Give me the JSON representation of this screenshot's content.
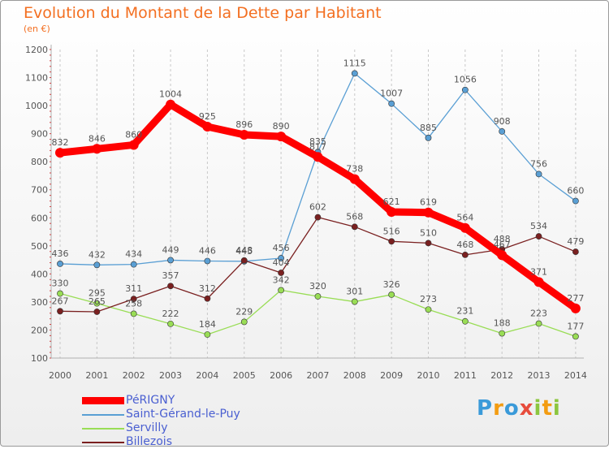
{
  "title": "Evolution du Montant de la Dette par Habitant",
  "subtitle": "(en €)",
  "logo": {
    "text": "Proxiti",
    "icon": "proxiti-logo"
  },
  "chart_data": {
    "type": "line",
    "title": "Evolution du Montant de la Dette par Habitant",
    "subtitle": "(en €)",
    "xlabel": "",
    "ylabel": "",
    "x": [
      "2000",
      "2001",
      "2002",
      "2003",
      "2004",
      "2005",
      "2006",
      "2007",
      "2008",
      "2009",
      "2010",
      "2011",
      "2012",
      "2013",
      "2014"
    ],
    "ylim": [
      100,
      1200
    ],
    "yticks": [
      100,
      200,
      300,
      400,
      500,
      600,
      700,
      800,
      900,
      1000,
      1100,
      1200
    ],
    "grid": "vertical dashed",
    "legend_position": "bottom-left",
    "series": [
      {
        "name": "PéRIGNY",
        "color": "#ff0000",
        "style": "thick",
        "values": [
          832,
          846,
          860,
          1004,
          925,
          896,
          890,
          817,
          738,
          621,
          619,
          564,
          467,
          371,
          277
        ]
      },
      {
        "name": "Saint-Gérand-le-Puy",
        "color": "#5a9fd4",
        "style": "thin",
        "values": [
          436,
          432,
          434,
          449,
          446,
          445,
          456,
          835,
          1115,
          1007,
          885,
          1056,
          908,
          756,
          660
        ]
      },
      {
        "name": "Servilly",
        "color": "#99dd55",
        "style": "thin",
        "values": [
          330,
          295,
          258,
          222,
          184,
          229,
          342,
          320,
          301,
          326,
          273,
          231,
          188,
          223,
          177
        ]
      },
      {
        "name": "Billezois",
        "color": "#7a2020",
        "style": "thin",
        "values": [
          267,
          265,
          311,
          357,
          312,
          448,
          404,
          602,
          568,
          516,
          510,
          468,
          488,
          534,
          479
        ]
      }
    ]
  }
}
